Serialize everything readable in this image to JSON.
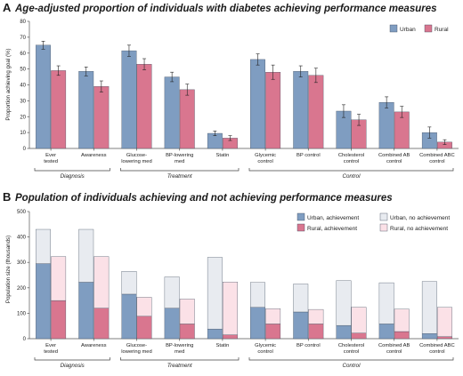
{
  "panels": {
    "a": {
      "letter": "A",
      "title": "Age-adjusted proportion of individuals with diabetes achieving performance measures",
      "ylabel": "Proportion achieving goal (%)"
    },
    "b": {
      "letter": "B",
      "title": "Population of individuals achieving and not achieving performance measures",
      "ylabel": "Population size (thousands)"
    }
  },
  "colors": {
    "urban": "#7f9dc1",
    "rural": "#d9768f",
    "urban_no": "#e8ebf0",
    "rural_no": "#fbe1e7",
    "edge": "#3d4a5c"
  },
  "chart_data": [
    {
      "type": "bar",
      "title": "Age-adjusted proportion of individuals with diabetes achieving performance measures",
      "ylabel": "Proportion achieving goal (%)",
      "xlabel": "",
      "ylim": [
        0,
        80
      ],
      "yticks": [
        0,
        10,
        20,
        30,
        40,
        50,
        60,
        70,
        80
      ],
      "grid": false,
      "legend_position": "top-right",
      "categories": [
        "Ever tested",
        "Awareness",
        "Glucose-lowering med",
        "BP-lowering med",
        "Statin",
        "Glycemic control",
        "BP control",
        "Cholesterol control",
        "Combined AB control",
        "Combined ABC control"
      ],
      "series": [
        {
          "name": "Urban",
          "values": [
            65,
            48.5,
            61.5,
            45,
            9.5,
            56,
            48.5,
            23.5,
            29,
            10
          ],
          "err": [
            2.5,
            2.8,
            3.5,
            3,
            1.5,
            3.5,
            3.5,
            4,
            3.5,
            3.5
          ]
        },
        {
          "name": "Rural",
          "values": [
            49,
            39,
            53,
            37,
            6.5,
            48,
            46,
            18,
            23,
            4
          ],
          "err": [
            3,
            3.5,
            3.5,
            3.5,
            1.5,
            4.5,
            4.5,
            3.5,
            3.5,
            1.5
          ]
        }
      ],
      "groups": [
        {
          "label": "Diagnosis",
          "from": 0,
          "to": 1
        },
        {
          "label": "Treatment",
          "from": 2,
          "to": 4
        },
        {
          "label": "Control",
          "from": 5,
          "to": 9
        }
      ]
    },
    {
      "type": "bar",
      "title": "Population of individuals achieving and not achieving performance measures",
      "ylabel": "Population size (thousands)",
      "xlabel": "",
      "ylim": [
        0,
        500
      ],
      "yticks": [
        0,
        100,
        200,
        300,
        400,
        500
      ],
      "grid": false,
      "legend_position": "top-right",
      "categories": [
        "Ever tested",
        "Awareness",
        "Glucose-lowering med",
        "BP-lowering med",
        "Statin",
        "Glycemic control",
        "BP control",
        "Cholesterol control",
        "Combined AB control",
        "Combined ABC control"
      ],
      "series": [
        {
          "name": "Urban, achievement",
          "values": [
            295,
            222,
            175,
            120,
            38,
            123,
            105,
            52,
            58,
            20
          ]
        },
        {
          "name": "Urban, no achievement",
          "values": [
            135,
            208,
            90,
            123,
            282,
            98,
            110,
            176,
            162,
            205
          ]
        },
        {
          "name": "Rural, achievement",
          "values": [
            150,
            120,
            88,
            58,
            15,
            58,
            58,
            22,
            28,
            8
          ]
        },
        {
          "name": "Rural, no achievement",
          "values": [
            173,
            203,
            75,
            98,
            208,
            60,
            57,
            102,
            88,
            115
          ]
        }
      ],
      "groups": [
        {
          "label": "Diagnosis",
          "from": 0,
          "to": 1
        },
        {
          "label": "Treatment",
          "from": 2,
          "to": 4
        },
        {
          "label": "Control",
          "from": 5,
          "to": 9
        }
      ]
    }
  ]
}
